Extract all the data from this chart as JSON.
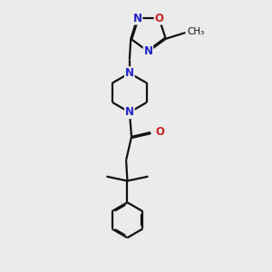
{
  "bg_color": "#ebebeb",
  "bond_color": "#111111",
  "N_color": "#2222cc",
  "O_color": "#cc2222",
  "lw": 1.6,
  "dbo": 0.042,
  "fs": 8.5,
  "xlim": [
    0,
    10
  ],
  "ylim": [
    0,
    11
  ]
}
